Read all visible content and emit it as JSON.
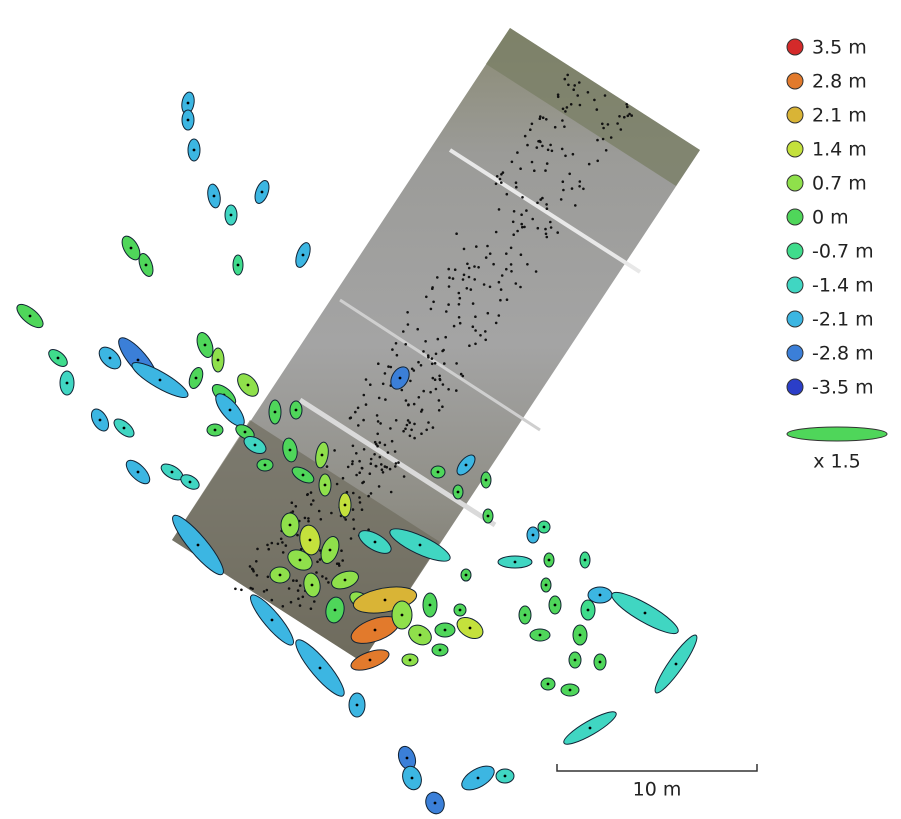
{
  "legend": {
    "items": [
      {
        "label": "3.5 m",
        "color": "#d42a2a"
      },
      {
        "label": "2.8 m",
        "color": "#e27a2c"
      },
      {
        "label": "2.1 m",
        "color": "#d9b436"
      },
      {
        "label": "1.4 m",
        "color": "#c4e13c"
      },
      {
        "label": "0.7 m",
        "color": "#8fe04b"
      },
      {
        "label": "0 m",
        "color": "#4fd65a"
      },
      {
        "label": "-0.7 m",
        "color": "#3fdc8c"
      },
      {
        "label": "-1.4 m",
        "color": "#40d6c2"
      },
      {
        "label": "-2.1 m",
        "color": "#3cb6e2"
      },
      {
        "label": "-2.8 m",
        "color": "#3b7fd8"
      },
      {
        "label": "-3.5 m",
        "color": "#2b3ec8"
      }
    ],
    "scale_label": "x 1.5"
  },
  "scale_bar": {
    "label": "10 m"
  }
}
